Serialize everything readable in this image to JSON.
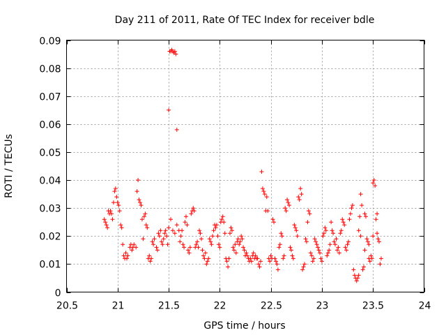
{
  "chart_data": {
    "type": "scatter",
    "title": "Day 211 of 2011, Rate Of TEC Index for receiver bdle",
    "xlabel": "GPS time / hours",
    "ylabel": "ROTI / TECUs",
    "xlim": [
      20.5,
      24
    ],
    "ylim": [
      0,
      0.09
    ],
    "x_ticks": [
      20.5,
      21,
      21.5,
      22,
      22.5,
      23,
      23.5,
      24
    ],
    "x_tick_labels": [
      "20.5",
      "21",
      "21.5",
      "22",
      "22.5",
      "23",
      "23.5",
      "24"
    ],
    "y_ticks": [
      0,
      0.01,
      0.02,
      0.03,
      0.04,
      0.05,
      0.06,
      0.07,
      0.08,
      0.09
    ],
    "y_tick_labels": [
      "0",
      "0.01",
      "0.02",
      "0.03",
      "0.04",
      "0.05",
      "0.06",
      "0.07",
      "0.08",
      "0.09"
    ],
    "grid": true,
    "marker": "+",
    "color": "#ff0000",
    "series": [
      {
        "name": "ROTI",
        "points": [
          [
            20.87,
            0.026
          ],
          [
            20.88,
            0.025
          ],
          [
            20.89,
            0.024
          ],
          [
            20.9,
            0.023
          ],
          [
            20.91,
            0.029
          ],
          [
            20.92,
            0.028
          ],
          [
            20.93,
            0.029
          ],
          [
            20.94,
            0.028
          ],
          [
            20.95,
            0.026
          ],
          [
            20.96,
            0.032
          ],
          [
            20.97,
            0.036
          ],
          [
            20.98,
            0.037
          ],
          [
            20.99,
            0.034
          ],
          [
            21.0,
            0.032
          ],
          [
            21.01,
            0.031
          ],
          [
            21.02,
            0.029
          ],
          [
            21.03,
            0.024
          ],
          [
            21.04,
            0.023
          ],
          [
            21.05,
            0.017
          ],
          [
            21.06,
            0.013
          ],
          [
            21.07,
            0.012
          ],
          [
            21.08,
            0.014
          ],
          [
            21.09,
            0.012
          ],
          [
            21.1,
            0.013
          ],
          [
            21.12,
            0.016
          ],
          [
            21.13,
            0.017
          ],
          [
            21.14,
            0.015
          ],
          [
            21.15,
            0.016
          ],
          [
            21.16,
            0.017
          ],
          [
            21.18,
            0.016
          ],
          [
            21.19,
            0.036
          ],
          [
            21.2,
            0.04
          ],
          [
            21.21,
            0.033
          ],
          [
            21.22,
            0.032
          ],
          [
            21.23,
            0.031
          ],
          [
            21.24,
            0.026
          ],
          [
            21.25,
            0.019
          ],
          [
            21.26,
            0.027
          ],
          [
            21.27,
            0.028
          ],
          [
            21.28,
            0.024
          ],
          [
            21.29,
            0.023
          ],
          [
            21.3,
            0.012
          ],
          [
            21.31,
            0.013
          ],
          [
            21.32,
            0.011
          ],
          [
            21.33,
            0.012
          ],
          [
            21.34,
            0.018
          ],
          [
            21.35,
            0.017
          ],
          [
            21.36,
            0.019
          ],
          [
            21.38,
            0.016
          ],
          [
            21.39,
            0.015
          ],
          [
            21.4,
            0.021
          ],
          [
            21.41,
            0.02
          ],
          [
            21.42,
            0.022
          ],
          [
            21.43,
            0.018
          ],
          [
            21.44,
            0.017
          ],
          [
            21.45,
            0.019
          ],
          [
            21.46,
            0.021
          ],
          [
            21.47,
            0.022
          ],
          [
            21.48,
            0.02
          ],
          [
            21.49,
            0.017
          ],
          [
            21.5,
            0.065
          ],
          [
            21.51,
            0.086
          ],
          [
            21.52,
            0.086
          ],
          [
            21.53,
            0.0865
          ],
          [
            21.54,
            0.086
          ],
          [
            21.55,
            0.0855
          ],
          [
            21.56,
            0.086
          ],
          [
            21.57,
            0.085
          ],
          [
            21.58,
            0.058
          ],
          [
            21.5,
            0.023
          ],
          [
            21.52,
            0.026
          ],
          [
            21.54,
            0.022
          ],
          [
            21.56,
            0.021
          ],
          [
            21.58,
            0.024
          ],
          [
            21.6,
            0.022
          ],
          [
            21.61,
            0.018
          ],
          [
            21.62,
            0.02
          ],
          [
            21.63,
            0.022
          ],
          [
            21.64,
            0.017
          ],
          [
            21.65,
            0.016
          ],
          [
            21.66,
            0.025
          ],
          [
            21.67,
            0.027
          ],
          [
            21.68,
            0.024
          ],
          [
            21.69,
            0.015
          ],
          [
            21.7,
            0.014
          ],
          [
            21.71,
            0.016
          ],
          [
            21.72,
            0.028
          ],
          [
            21.73,
            0.029
          ],
          [
            21.74,
            0.03
          ],
          [
            21.75,
            0.029
          ],
          [
            21.76,
            0.016
          ],
          [
            21.77,
            0.017
          ],
          [
            21.78,
            0.018
          ],
          [
            21.79,
            0.016
          ],
          [
            21.8,
            0.022
          ],
          [
            21.81,
            0.021
          ],
          [
            21.82,
            0.019
          ],
          [
            21.83,
            0.015
          ],
          [
            21.84,
            0.013
          ],
          [
            21.85,
            0.012
          ],
          [
            21.86,
            0.014
          ],
          [
            21.87,
            0.01
          ],
          [
            21.88,
            0.011
          ],
          [
            21.89,
            0.012
          ],
          [
            21.9,
            0.019
          ],
          [
            21.91,
            0.018
          ],
          [
            21.92,
            0.017
          ],
          [
            21.93,
            0.02
          ],
          [
            21.94,
            0.022
          ],
          [
            21.95,
            0.024
          ],
          [
            21.96,
            0.023
          ],
          [
            21.97,
            0.024
          ],
          [
            21.98,
            0.02
          ],
          [
            21.99,
            0.017
          ],
          [
            22.0,
            0.016
          ],
          [
            22.01,
            0.025
          ],
          [
            22.02,
            0.026
          ],
          [
            22.03,
            0.027
          ],
          [
            22.04,
            0.025
          ],
          [
            22.05,
            0.021
          ],
          [
            22.06,
            0.012
          ],
          [
            22.07,
            0.011
          ],
          [
            22.08,
            0.009
          ],
          [
            22.09,
            0.012
          ],
          [
            22.1,
            0.021
          ],
          [
            22.11,
            0.023
          ],
          [
            22.12,
            0.022
          ],
          [
            22.13,
            0.016
          ],
          [
            22.14,
            0.015
          ],
          [
            22.15,
            0.017
          ],
          [
            22.16,
            0.014
          ],
          [
            22.17,
            0.018
          ],
          [
            22.18,
            0.019
          ],
          [
            22.19,
            0.017
          ],
          [
            22.2,
            0.018
          ],
          [
            22.21,
            0.02
          ],
          [
            22.22,
            0.019
          ],
          [
            22.23,
            0.016
          ],
          [
            22.24,
            0.015
          ],
          [
            22.25,
            0.013
          ],
          [
            22.26,
            0.014
          ],
          [
            22.27,
            0.013
          ],
          [
            22.28,
            0.012
          ],
          [
            22.29,
            0.011
          ],
          [
            22.3,
            0.012
          ],
          [
            22.31,
            0.011
          ],
          [
            22.32,
            0.013
          ],
          [
            22.33,
            0.014
          ],
          [
            22.34,
            0.012
          ],
          [
            22.35,
            0.013
          ],
          [
            22.36,
            0.012
          ],
          [
            22.37,
            0.012
          ],
          [
            22.38,
            0.01
          ],
          [
            22.39,
            0.009
          ],
          [
            22.4,
            0.011
          ],
          [
            22.41,
            0.043
          ],
          [
            22.42,
            0.037
          ],
          [
            22.43,
            0.036
          ],
          [
            22.44,
            0.035
          ],
          [
            22.45,
            0.029
          ],
          [
            22.46,
            0.034
          ],
          [
            22.47,
            0.029
          ],
          [
            22.48,
            0.012
          ],
          [
            22.49,
            0.011
          ],
          [
            22.5,
            0.013
          ],
          [
            22.51,
            0.012
          ],
          [
            22.52,
            0.026
          ],
          [
            22.53,
            0.025
          ],
          [
            22.54,
            0.012
          ],
          [
            22.55,
            0.011
          ],
          [
            22.56,
            0.01
          ],
          [
            22.57,
            0.008
          ],
          [
            22.58,
            0.016
          ],
          [
            22.59,
            0.017
          ],
          [
            22.6,
            0.021
          ],
          [
            22.61,
            0.02
          ],
          [
            22.62,
            0.012
          ],
          [
            22.63,
            0.013
          ],
          [
            22.64,
            0.03
          ],
          [
            22.65,
            0.029
          ],
          [
            22.66,
            0.033
          ],
          [
            22.67,
            0.032
          ],
          [
            22.68,
            0.031
          ],
          [
            22.69,
            0.016
          ],
          [
            22.7,
            0.015
          ],
          [
            22.71,
            0.013
          ],
          [
            22.72,
            0.012
          ],
          [
            22.73,
            0.024
          ],
          [
            22.74,
            0.023
          ],
          [
            22.75,
            0.022
          ],
          [
            22.76,
            0.02
          ],
          [
            22.77,
            0.034
          ],
          [
            22.78,
            0.033
          ],
          [
            22.79,
            0.037
          ],
          [
            22.8,
            0.035
          ],
          [
            22.81,
            0.008
          ],
          [
            22.82,
            0.009
          ],
          [
            22.83,
            0.01
          ],
          [
            22.84,
            0.019
          ],
          [
            22.85,
            0.018
          ],
          [
            22.86,
            0.025
          ],
          [
            22.87,
            0.029
          ],
          [
            22.88,
            0.028
          ],
          [
            22.89,
            0.014
          ],
          [
            22.9,
            0.013
          ],
          [
            22.91,
            0.011
          ],
          [
            22.92,
            0.012
          ],
          [
            22.93,
            0.019
          ],
          [
            22.94,
            0.018
          ],
          [
            22.95,
            0.017
          ],
          [
            22.96,
            0.016
          ],
          [
            22.97,
            0.015
          ],
          [
            22.98,
            0.014
          ],
          [
            22.99,
            0.012
          ],
          [
            23.0,
            0.011
          ],
          [
            23.01,
            0.02
          ],
          [
            23.02,
            0.021
          ],
          [
            23.03,
            0.023
          ],
          [
            23.04,
            0.022
          ],
          [
            23.05,
            0.013
          ],
          [
            23.06,
            0.014
          ],
          [
            23.07,
            0.015
          ],
          [
            23.08,
            0.017
          ],
          [
            23.09,
            0.025
          ],
          [
            23.1,
            0.022
          ],
          [
            23.11,
            0.021
          ],
          [
            23.12,
            0.018
          ],
          [
            23.13,
            0.017
          ],
          [
            23.14,
            0.019
          ],
          [
            23.15,
            0.015
          ],
          [
            23.16,
            0.016
          ],
          [
            23.17,
            0.014
          ],
          [
            23.18,
            0.021
          ],
          [
            23.19,
            0.022
          ],
          [
            23.2,
            0.026
          ],
          [
            23.21,
            0.025
          ],
          [
            23.22,
            0.024
          ],
          [
            23.23,
            0.016
          ],
          [
            23.24,
            0.015
          ],
          [
            23.25,
            0.017
          ],
          [
            23.26,
            0.018
          ],
          [
            23.27,
            0.026
          ],
          [
            23.28,
            0.028
          ],
          [
            23.29,
            0.03
          ],
          [
            23.3,
            0.031
          ],
          [
            23.31,
            0.008
          ],
          [
            23.32,
            0.006
          ],
          [
            23.33,
            0.005
          ],
          [
            23.34,
            0.004
          ],
          [
            23.35,
            0.005
          ],
          [
            23.36,
            0.006
          ],
          [
            23.37,
            0.027
          ],
          [
            23.38,
            0.035
          ],
          [
            23.39,
            0.031
          ],
          [
            23.4,
            0.008
          ],
          [
            23.41,
            0.009
          ],
          [
            23.42,
            0.028
          ],
          [
            23.43,
            0.027
          ],
          [
            23.44,
            0.019
          ],
          [
            23.45,
            0.018
          ],
          [
            23.46,
            0.012
          ],
          [
            23.47,
            0.011
          ],
          [
            23.48,
            0.013
          ],
          [
            23.49,
            0.012
          ],
          [
            23.5,
            0.039
          ],
          [
            23.51,
            0.04
          ],
          [
            23.52,
            0.038
          ],
          [
            23.53,
            0.026
          ],
          [
            23.54,
            0.021
          ],
          [
            23.55,
            0.019
          ],
          [
            23.56,
            0.018
          ],
          [
            23.57,
            0.01
          ],
          [
            23.58,
            0.012
          ],
          [
            23.36,
            0.022
          ],
          [
            23.38,
            0.02
          ],
          [
            23.42,
            0.015
          ],
          [
            23.46,
            0.017
          ],
          [
            23.5,
            0.02
          ],
          [
            23.54,
            0.028
          ]
        ]
      }
    ]
  }
}
